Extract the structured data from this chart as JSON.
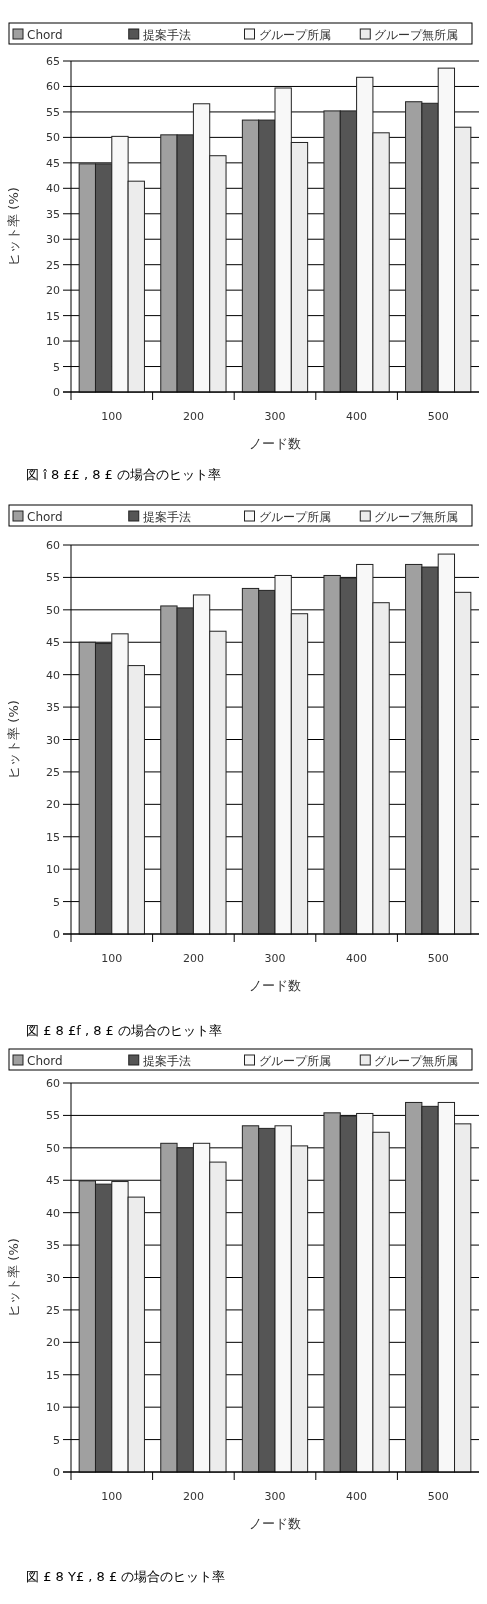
{
  "chart_data": [
    {
      "type": "bar",
      "ylabel": "ヒット率 (%)",
      "xlabel": "ノード数",
      "categories": [
        "100",
        "200",
        "300",
        "400",
        "500"
      ],
      "ylim": [
        0,
        65
      ],
      "yticks": [
        0,
        5,
        10,
        15,
        20,
        25,
        30,
        35,
        40,
        45,
        50,
        55,
        60,
        65
      ],
      "grid": "y",
      "legend": "top",
      "series": [
        {
          "name": "Chord",
          "color": "#a0a0a0",
          "values": [
            44.8,
            50.5,
            53.4,
            55.2,
            57.0
          ]
        },
        {
          "name": "提案手法",
          "color": "#555555",
          "values": [
            44.8,
            50.5,
            53.4,
            55.2,
            56.7
          ]
        },
        {
          "name": "グループ所属",
          "color": "#f8f8f8",
          "values": [
            50.2,
            56.6,
            59.7,
            61.8,
            63.6
          ]
        },
        {
          "name": "グループ無所属",
          "color": "#ececec",
          "values": [
            41.4,
            46.4,
            49.0,
            50.9,
            52.0
          ]
        }
      ],
      "annotations": [
        "図 î 8 ££ , 8 £ の場合のヒット率"
      ]
    },
    {
      "type": "bar",
      "ylabel": "ヒット率 (%)",
      "xlabel": "ノード数",
      "categories": [
        "100",
        "200",
        "300",
        "400",
        "500"
      ],
      "ylim": [
        0,
        60
      ],
      "yticks": [
        0,
        5,
        10,
        15,
        20,
        25,
        30,
        35,
        40,
        45,
        50,
        55,
        60
      ],
      "grid": "y",
      "legend": "top",
      "series": [
        {
          "name": "Chord",
          "color": "#a0a0a0",
          "values": [
            45.0,
            50.6,
            53.3,
            55.3,
            57.0
          ]
        },
        {
          "name": "提案手法",
          "color": "#555555",
          "values": [
            44.8,
            50.3,
            53.0,
            54.9,
            56.6
          ]
        },
        {
          "name": "グループ所属",
          "color": "#f8f8f8",
          "values": [
            46.3,
            52.3,
            55.3,
            57.0,
            58.6
          ]
        },
        {
          "name": "グループ無所属",
          "color": "#ececec",
          "values": [
            41.4,
            46.7,
            49.4,
            51.1,
            52.7
          ]
        }
      ],
      "annotations": [
        "図 £ 8 £f , 8 £ の場合のヒット率"
      ]
    },
    {
      "type": "bar",
      "ylabel": "ヒット率 (%)",
      "xlabel": "ノード数",
      "categories": [
        "100",
        "200",
        "300",
        "400",
        "500"
      ],
      "ylim": [
        0,
        60
      ],
      "yticks": [
        0,
        5,
        10,
        15,
        20,
        25,
        30,
        35,
        40,
        45,
        50,
        55,
        60
      ],
      "grid": "y",
      "legend": "top",
      "series": [
        {
          "name": "Chord",
          "color": "#a0a0a0",
          "values": [
            44.9,
            50.7,
            53.4,
            55.4,
            57.0
          ]
        },
        {
          "name": "提案手法",
          "color": "#555555",
          "values": [
            44.4,
            50.0,
            53.0,
            54.9,
            56.4
          ]
        },
        {
          "name": "グループ所属",
          "color": "#f8f8f8",
          "values": [
            44.8,
            50.7,
            53.4,
            55.3,
            57.0
          ]
        },
        {
          "name": "グループ無所属",
          "color": "#ececec",
          "values": [
            42.4,
            47.8,
            50.3,
            52.4,
            53.7
          ]
        }
      ],
      "annotations": [
        "図 £ 8 Y£ , 8 £ の場合のヒット率"
      ]
    }
  ]
}
